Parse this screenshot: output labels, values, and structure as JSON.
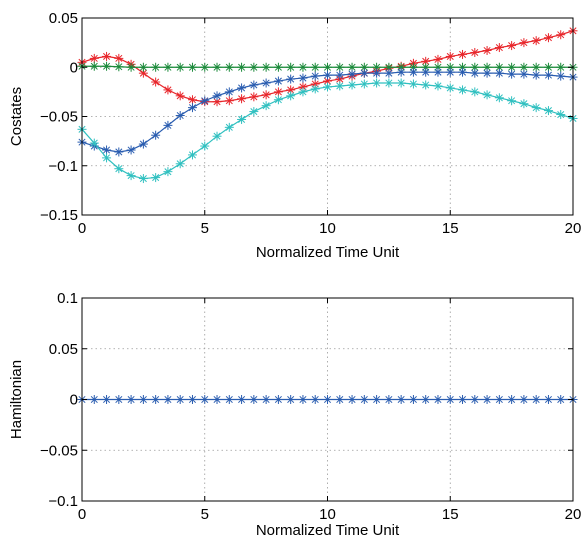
{
  "chart_data": [
    {
      "type": "line",
      "title": "",
      "xlabel": "Normalized Time Unit",
      "ylabel": "Costates",
      "xlim": [
        0,
        20
      ],
      "ylim": [
        -0.15,
        0.05
      ],
      "xticks": [
        0,
        5,
        10,
        15,
        20
      ],
      "xtick_labels": [
        "0",
        "5",
        "10",
        "15",
        "20"
      ],
      "yticks": [
        0.05,
        0,
        -0.05,
        -0.1,
        -0.15
      ],
      "ytick_labels": [
        "0.05",
        "0",
        "−0.05",
        "−0.1",
        "−0.15"
      ],
      "grid": true,
      "marker": "asterisk",
      "series": [
        {
          "color": "#e8262b",
          "x": [
            0,
            0.5,
            1,
            1.5,
            2,
            2.5,
            3,
            3.5,
            4,
            4.5,
            5,
            5.5,
            6,
            6.5,
            7,
            7.5,
            8,
            8.5,
            9,
            9.5,
            10,
            10.5,
            11,
            11.5,
            12,
            12.5,
            13,
            13.5,
            14,
            14.5,
            15,
            15.5,
            16,
            16.5,
            17,
            17.5,
            18,
            18.5,
            19,
            19.5,
            20
          ],
          "y": [
            0.005,
            0.009,
            0.011,
            0.009,
            0.003,
            -0.006,
            -0.015,
            -0.023,
            -0.029,
            -0.033,
            -0.035,
            -0.035,
            -0.034,
            -0.032,
            -0.03,
            -0.028,
            -0.025,
            -0.023,
            -0.02,
            -0.017,
            -0.014,
            -0.012,
            -0.009,
            -0.006,
            -0.004,
            -0.001,
            0.001,
            0.004,
            0.006,
            0.008,
            0.011,
            0.013,
            0.015,
            0.017,
            0.02,
            0.022,
            0.025,
            0.027,
            0.03,
            0.033,
            0.037
          ]
        },
        {
          "color": "#1b8a3a",
          "x": [
            0,
            0.5,
            1,
            1.5,
            2,
            2.5,
            3,
            3.5,
            4,
            4.5,
            5,
            5.5,
            6,
            6.5,
            7,
            7.5,
            8,
            8.5,
            9,
            9.5,
            10,
            10.5,
            11,
            11.5,
            12,
            12.5,
            13,
            13.5,
            14,
            14.5,
            15,
            15.5,
            16,
            16.5,
            17,
            17.5,
            18,
            18.5,
            19,
            19.5,
            20
          ],
          "y": [
            0.001,
            0.001,
            0.001,
            0.0005,
            0,
            0,
            0,
            0,
            0,
            0,
            0,
            0,
            0,
            0,
            0,
            0,
            0,
            0,
            0,
            0,
            0,
            0,
            0,
            0,
            0,
            0,
            0,
            0,
            0,
            0,
            0,
            0,
            0,
            0,
            0,
            0,
            0,
            0,
            0,
            0,
            0
          ]
        },
        {
          "color": "#2a5db0",
          "x": [
            0,
            0.5,
            1,
            1.5,
            2,
            2.5,
            3,
            3.5,
            4,
            4.5,
            5,
            5.5,
            6,
            6.5,
            7,
            7.5,
            8,
            8.5,
            9,
            9.5,
            10,
            10.5,
            11,
            11.5,
            12,
            12.5,
            13,
            13.5,
            14,
            14.5,
            15,
            15.5,
            16,
            16.5,
            17,
            17.5,
            18,
            18.5,
            19,
            19.5,
            20
          ],
          "y": [
            -0.076,
            -0.08,
            -0.084,
            -0.086,
            -0.084,
            -0.078,
            -0.069,
            -0.059,
            -0.049,
            -0.041,
            -0.034,
            -0.029,
            -0.025,
            -0.021,
            -0.018,
            -0.016,
            -0.014,
            -0.012,
            -0.011,
            -0.009,
            -0.008,
            -0.008,
            -0.007,
            -0.006,
            -0.006,
            -0.006,
            -0.005,
            -0.005,
            -0.005,
            -0.005,
            -0.005,
            -0.005,
            -0.006,
            -0.006,
            -0.006,
            -0.007,
            -0.007,
            -0.008,
            -0.008,
            -0.009,
            -0.01
          ]
        },
        {
          "color": "#30c0c0",
          "x": [
            0,
            0.5,
            1,
            1.5,
            2,
            2.5,
            3,
            3.5,
            4,
            4.5,
            5,
            5.5,
            6,
            6.5,
            7,
            7.5,
            8,
            8.5,
            9,
            9.5,
            10,
            10.5,
            11,
            11.5,
            12,
            12.5,
            13,
            13.5,
            14,
            14.5,
            15,
            15.5,
            16,
            16.5,
            17,
            17.5,
            18,
            18.5,
            19,
            19.5,
            20
          ],
          "y": [
            -0.063,
            -0.077,
            -0.092,
            -0.103,
            -0.11,
            -0.113,
            -0.112,
            -0.106,
            -0.098,
            -0.089,
            -0.08,
            -0.07,
            -0.061,
            -0.053,
            -0.045,
            -0.039,
            -0.033,
            -0.029,
            -0.025,
            -0.022,
            -0.02,
            -0.019,
            -0.018,
            -0.017,
            -0.016,
            -0.016,
            -0.016,
            -0.017,
            -0.018,
            -0.019,
            -0.021,
            -0.023,
            -0.025,
            -0.028,
            -0.031,
            -0.034,
            -0.037,
            -0.041,
            -0.044,
            -0.048,
            -0.052
          ]
        }
      ]
    },
    {
      "type": "line",
      "title": "",
      "xlabel": "Normalized Time Unit",
      "ylabel": "Hamiltonian",
      "xlim": [
        0,
        20
      ],
      "ylim": [
        -0.1,
        0.1
      ],
      "xticks": [
        0,
        5,
        10,
        15,
        20
      ],
      "xtick_labels": [
        "0",
        "5",
        "10",
        "15",
        "20"
      ],
      "yticks": [
        0.1,
        0.05,
        0,
        -0.05,
        -0.1
      ],
      "ytick_labels": [
        "0.1",
        "0.05",
        "0",
        "−0.05",
        "−0.1"
      ],
      "grid": true,
      "marker": "asterisk",
      "series": [
        {
          "color": "#2a5db0",
          "x": [
            0,
            0.5,
            1,
            1.5,
            2,
            2.5,
            3,
            3.5,
            4,
            4.5,
            5,
            5.5,
            6,
            6.5,
            7,
            7.5,
            8,
            8.5,
            9,
            9.5,
            10,
            10.5,
            11,
            11.5,
            12,
            12.5,
            13,
            13.5,
            14,
            14.5,
            15,
            15.5,
            16,
            16.5,
            17,
            17.5,
            18,
            18.5,
            19,
            19.5,
            20
          ],
          "y": [
            0,
            0,
            0,
            0,
            0,
            0,
            0,
            0,
            0,
            0,
            0,
            0,
            0,
            0,
            0,
            0,
            0,
            0,
            0,
            0,
            0,
            0,
            0,
            0,
            0,
            0,
            0,
            0,
            0,
            0,
            0,
            0,
            0,
            0,
            0,
            0,
            0,
            0,
            0,
            0,
            0
          ]
        }
      ]
    }
  ]
}
